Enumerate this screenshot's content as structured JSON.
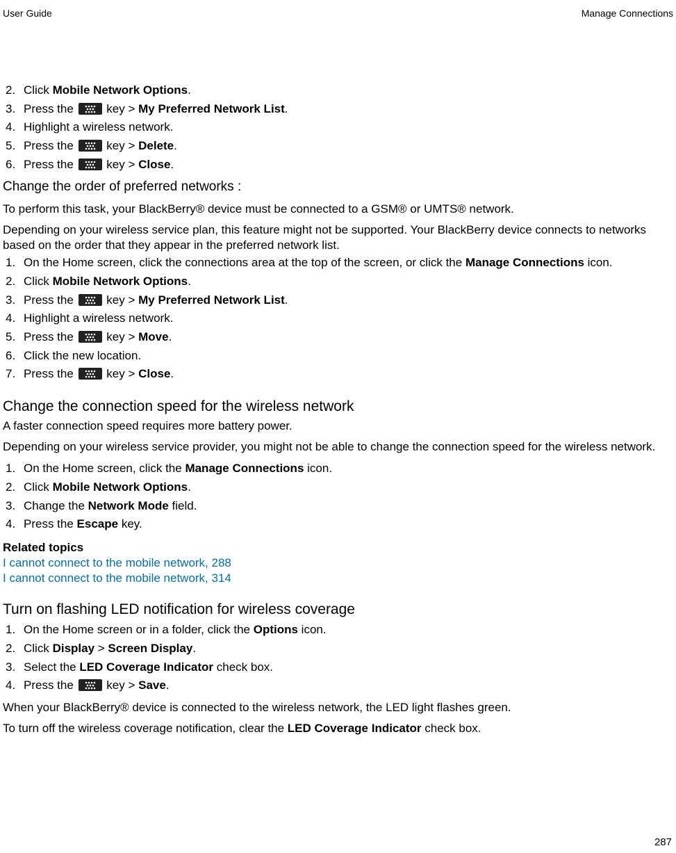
{
  "header": {
    "left": "User Guide",
    "right": "Manage Connections"
  },
  "section1_start": 2,
  "section1": [
    {
      "pre": "Click ",
      "b": "Mobile Network Options",
      "post": "."
    },
    {
      "pre": "Press the ",
      "icon": true,
      "mid": " key > ",
      "b": "My Preferred Network List",
      "post": "."
    },
    {
      "pre": "Highlight a wireless network."
    },
    {
      "pre": "Press the ",
      "icon": true,
      "mid": " key > ",
      "b": "Delete",
      "post": "."
    },
    {
      "pre": "Press the ",
      "icon": true,
      "mid": " key > ",
      "b": "Close",
      "post": "."
    }
  ],
  "change_order_title": "Change the order of preferred networks :",
  "change_order_p1": "To perform this task, your BlackBerry® device must be connected to a GSM® or UMTS® network.",
  "change_order_p2": "Depending on your wireless service plan, this feature might not be supported. Your BlackBerry device connects to networks based on the order that they appear in the preferred network list.",
  "section2": [
    {
      "pre": "On the Home screen, click the connections area at the top of the screen, or click the ",
      "b": "Manage Connections",
      "post": " icon."
    },
    {
      "pre": "Click ",
      "b": "Mobile Network Options",
      "post": "."
    },
    {
      "pre": "Press the ",
      "icon": true,
      "mid": " key > ",
      "b": "My Preferred Network List",
      "post": "."
    },
    {
      "pre": "Highlight a wireless network."
    },
    {
      "pre": "Press the ",
      "icon": true,
      "mid": " key > ",
      "b": "Move",
      "post": "."
    },
    {
      "pre": "Click the new location."
    },
    {
      "pre": "Press the ",
      "icon": true,
      "mid": " key > ",
      "b": "Close",
      "post": "."
    }
  ],
  "speed_title": "Change the connection speed for the wireless network",
  "speed_p1": "A faster connection speed requires more battery power.",
  "speed_p2": "Depending on your wireless service provider, you might not be able to change the connection speed for the wireless network.",
  "section3": [
    {
      "pre": "On the Home screen, click the ",
      "b": "Manage Connections",
      "post": " icon."
    },
    {
      "pre": "Click ",
      "b": "Mobile Network Options",
      "post": "."
    },
    {
      "pre": "Change the ",
      "b": "Network Mode",
      "post": " field."
    },
    {
      "pre": "Press the ",
      "b": "Escape",
      "post": " key."
    }
  ],
  "related_title": "Related topics",
  "related_links": [
    "I cannot connect to the mobile network, 288",
    "I cannot connect to the mobile network, 314"
  ],
  "led_title": "Turn on flashing LED notification for wireless coverage",
  "section4": [
    {
      "pre": "On the Home screen or in a folder, click the ",
      "b": "Options",
      "post": " icon."
    },
    {
      "pre": "Click ",
      "b": "Display",
      "mid2": " > ",
      "b2": "Screen Display",
      "post": "."
    },
    {
      "pre": "Select the ",
      "b": "LED Coverage Indicator",
      "post": " check box."
    },
    {
      "pre": "Press the ",
      "icon": true,
      "mid": " key > ",
      "b": "Save",
      "post": "."
    }
  ],
  "led_p1": "When your BlackBerry® device is connected to the wireless network, the LED light flashes green.",
  "led_p2_pre": "To turn off the wireless coverage notification, clear the ",
  "led_p2_b": "LED Coverage Indicator",
  "led_p2_post": " check box.",
  "page_number": "287"
}
